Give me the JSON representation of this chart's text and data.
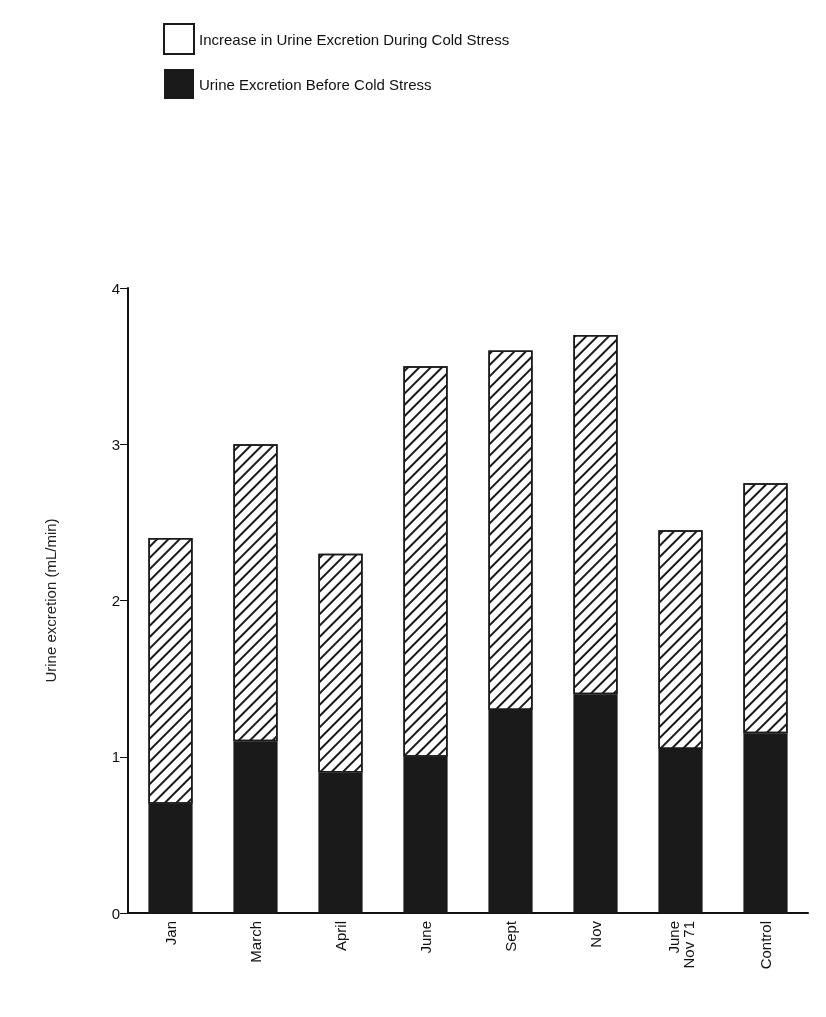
{
  "chart_data": {
    "type": "bar",
    "stacked": true,
    "ylabel": "Urine excretion (mL/min)",
    "categories": [
      "Jan",
      "March",
      "April",
      "June",
      "Sept",
      "Nov",
      "June\nNov 71",
      "Control"
    ],
    "series": [
      {
        "name": "Urine Excretion Before Cold Stress",
        "color": "#1a1a1a",
        "values": [
          0.7,
          1.1,
          0.9,
          1.0,
          1.3,
          1.4,
          1.05,
          1.15
        ]
      },
      {
        "name": "Increase in Urine Excretion During Cold Stress",
        "color": "#ffffff",
        "values": [
          1.7,
          1.9,
          1.4,
          2.5,
          2.3,
          2.3,
          1.4,
          1.6
        ]
      }
    ],
    "ylim": [
      0,
      4
    ],
    "yticks": [
      0,
      1,
      2,
      3,
      4
    ],
    "grid": false,
    "legend": "top left"
  }
}
